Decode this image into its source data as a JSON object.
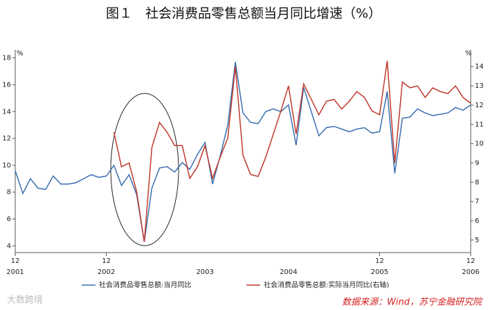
{
  "chart_data": {
    "type": "line",
    "title": "图１　社会消费品零售总额当月同比增速（%）",
    "y_unit": "%",
    "y2_unit": "%",
    "source": "数据来源：Wind，苏宁金融研究院",
    "watermark": "大数跨境",
    "categories": [
      "12",
      null,
      null,
      null,
      null,
      null,
      null,
      null,
      null,
      null,
      null,
      null,
      "12",
      null,
      null,
      null,
      null,
      null,
      null,
      null,
      null,
      null,
      null,
      null,
      null,
      null,
      null,
      null,
      null,
      null,
      null,
      null,
      null,
      null,
      null,
      null,
      null,
      null,
      null,
      null,
      null,
      null,
      null,
      null,
      null,
      null,
      null,
      null,
      "12",
      null,
      null,
      null,
      null,
      null,
      null,
      null,
      null,
      null,
      null,
      null,
      "12"
    ],
    "years": [
      "2001",
      null,
      null,
      null,
      null,
      null,
      null,
      null,
      null,
      null,
      null,
      null,
      "2002",
      null,
      null,
      null,
      null,
      null,
      null,
      null,
      null,
      null,
      null,
      null,
      null,
      "2003",
      null,
      null,
      null,
      null,
      null,
      null,
      null,
      null,
      null,
      null,
      "2004",
      null,
      null,
      null,
      null,
      null,
      null,
      null,
      null,
      null,
      null,
      null,
      "2005",
      null,
      null,
      null,
      null,
      null,
      null,
      null,
      null,
      null,
      null,
      null,
      "2006"
    ],
    "ylim": [
      3.5,
      18.6
    ],
    "yticks": [
      4,
      6,
      8,
      10,
      12,
      14,
      16,
      18
    ],
    "y2lim": [
      4.35,
      14.87
    ],
    "y2ticks": [
      5,
      6,
      7,
      8,
      9,
      10,
      11,
      12,
      13,
      14
    ],
    "series": [
      {
        "name": "社会消费品零售总额:当月同比",
        "color": "#3a6fb0",
        "values": [
          9.6,
          7.9,
          9.0,
          8.3,
          8.2,
          9.2,
          8.6,
          8.6,
          8.7,
          9.0,
          9.3,
          9.1,
          9.2,
          10.0,
          8.5,
          9.3,
          7.8,
          4.3,
          8.3,
          9.8,
          9.9,
          9.5,
          10.2,
          9.7,
          10.8,
          11.7,
          8.6,
          10.7,
          13.0,
          17.7,
          13.9,
          13.2,
          13.1,
          14.0,
          14.2,
          14.0,
          14.5,
          11.5,
          15.8,
          14.0,
          12.2,
          12.8,
          12.9,
          12.7,
          12.5,
          12.7,
          12.8,
          12.4,
          12.5,
          15.5,
          9.4,
          13.5,
          13.6,
          14.2,
          13.9,
          13.7,
          13.8,
          13.9,
          14.3,
          14.1,
          14.5
        ]
      },
      {
        "name": "社会消费品零售总额:实际当月同比(右轴)",
        "color": "#c0392b",
        "axis": "y2",
        "values": [
          null,
          null,
          null,
          null,
          null,
          null,
          null,
          null,
          null,
          null,
          null,
          null,
          null,
          10.6,
          8.8,
          9.0,
          7.5,
          4.9,
          9.8,
          11.1,
          10.6,
          9.9,
          9.9,
          8.2,
          8.8,
          9.9,
          8.2,
          9.3,
          10.3,
          14.0,
          9.4,
          8.4,
          8.3,
          9.3,
          10.5,
          11.7,
          13.0,
          10.5,
          13.1,
          12.3,
          11.5,
          12.2,
          12.3,
          11.8,
          12.2,
          12.7,
          12.4,
          11.7,
          11.5,
          14.3,
          9.0,
          13.2,
          12.9,
          13.0,
          12.4,
          12.9,
          12.7,
          12.6,
          13.0,
          12.4,
          12.1
        ]
      }
    ]
  }
}
